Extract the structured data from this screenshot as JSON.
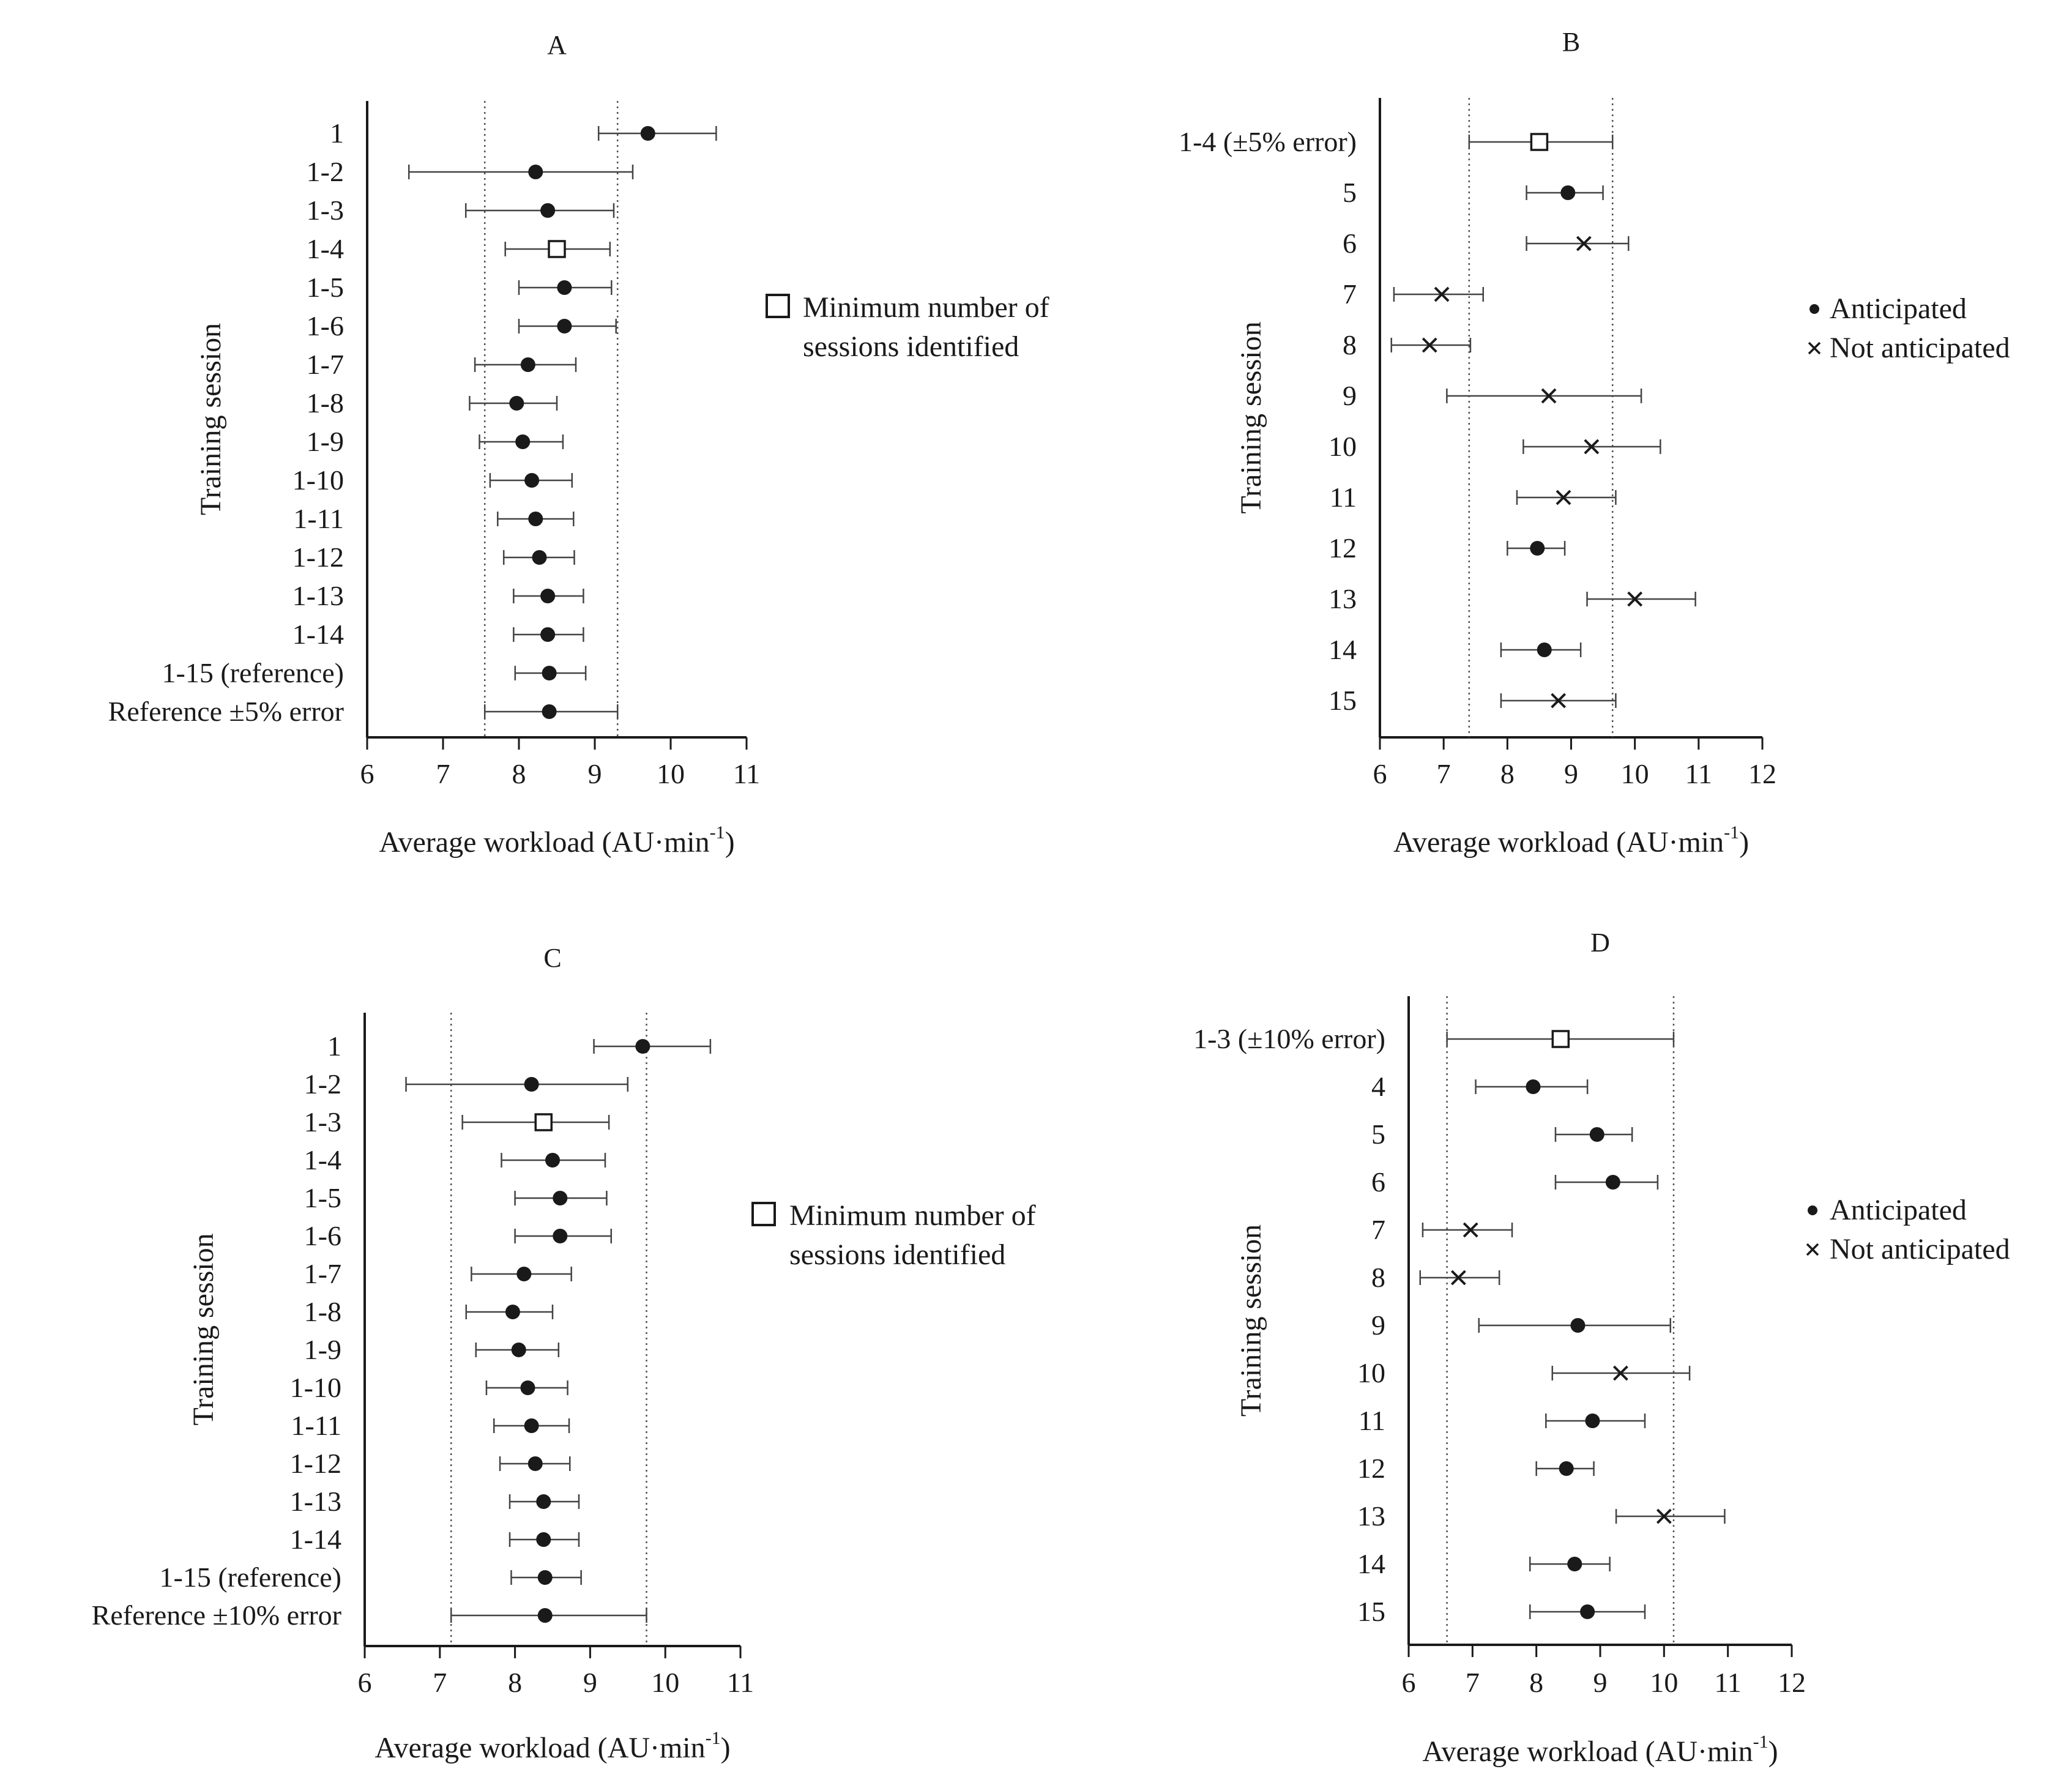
{
  "chart_data": [
    {
      "panel": "A",
      "type": "dot-errorbar",
      "title": "A",
      "xlabel": "Average workload (AU·min",
      "xlabel_sup": "-1",
      "ylabel": "Training session",
      "xlim": [
        6,
        11
      ],
      "xticks": [
        "6",
        "7",
        "8",
        "9",
        "10",
        "11"
      ],
      "reference_lines": [
        7.55,
        9.3
      ],
      "legend": {
        "placement": "right",
        "entries": [
          {
            "marker": "square",
            "lines": [
              "Minimum number of",
              "sessions identified"
            ]
          }
        ]
      },
      "rows": [
        {
          "label": "1",
          "value": 9.7,
          "low": 9.05,
          "high": 10.6,
          "marker": "dot"
        },
        {
          "label": "1-2",
          "value": 8.22,
          "low": 6.55,
          "high": 9.5,
          "marker": "dot"
        },
        {
          "label": "1-3",
          "value": 8.38,
          "low": 7.3,
          "high": 9.25,
          "marker": "dot"
        },
        {
          "label": "1-4",
          "value": 8.5,
          "low": 7.82,
          "high": 9.2,
          "marker": "square"
        },
        {
          "label": "1-5",
          "value": 8.6,
          "low": 8.0,
          "high": 9.22,
          "marker": "dot"
        },
        {
          "label": "1-6",
          "value": 8.6,
          "low": 8.0,
          "high": 9.28,
          "marker": "dot"
        },
        {
          "label": "1-7",
          "value": 8.12,
          "low": 7.42,
          "high": 8.75,
          "marker": "dot"
        },
        {
          "label": "1-8",
          "value": 7.97,
          "low": 7.35,
          "high": 8.5,
          "marker": "dot"
        },
        {
          "label": "1-9",
          "value": 8.05,
          "low": 7.48,
          "high": 8.58,
          "marker": "dot"
        },
        {
          "label": "1-10",
          "value": 8.17,
          "low": 7.62,
          "high": 8.7,
          "marker": "dot"
        },
        {
          "label": "1-11",
          "value": 8.22,
          "low": 7.72,
          "high": 8.72,
          "marker": "dot"
        },
        {
          "label": "1-12",
          "value": 8.27,
          "low": 7.8,
          "high": 8.73,
          "marker": "dot"
        },
        {
          "label": "1-13",
          "value": 8.38,
          "low": 7.93,
          "high": 8.85,
          "marker": "dot"
        },
        {
          "label": "1-14",
          "value": 8.38,
          "low": 7.93,
          "high": 8.85,
          "marker": "dot"
        },
        {
          "label": "1-15 (reference)",
          "value": 8.4,
          "low": 7.95,
          "high": 8.88,
          "marker": "dot"
        },
        {
          "label": "Reference ±5% error",
          "value": 8.4,
          "low": 7.55,
          "high": 9.3,
          "marker": "dot"
        }
      ]
    },
    {
      "panel": "B",
      "type": "dot-errorbar",
      "title": "B",
      "xlabel": "Average workload (AU·min",
      "xlabel_sup": "-1",
      "ylabel": "Training session",
      "xlim": [
        6,
        12
      ],
      "xticks": [
        "6",
        "7",
        "8",
        "9",
        "10",
        "11",
        "12"
      ],
      "reference_lines": [
        7.4,
        9.65
      ],
      "legend": {
        "placement": "right",
        "entries": [
          {
            "marker": "dot",
            "lines": [
              "Anticipated"
            ]
          },
          {
            "marker": "cross",
            "lines": [
              "Not anticipated"
            ]
          }
        ]
      },
      "rows": [
        {
          "label": "1-4 (±5% error)",
          "value": 8.5,
          "low": 7.4,
          "high": 9.65,
          "marker": "square"
        },
        {
          "label": "5",
          "value": 8.95,
          "low": 8.3,
          "high": 9.5,
          "marker": "dot"
        },
        {
          "label": "6",
          "value": 9.2,
          "low": 8.3,
          "high": 9.9,
          "marker": "cross"
        },
        {
          "label": "7",
          "value": 6.97,
          "low": 6.22,
          "high": 7.62,
          "marker": "cross"
        },
        {
          "label": "8",
          "value": 6.78,
          "low": 6.18,
          "high": 7.42,
          "marker": "cross"
        },
        {
          "label": "9",
          "value": 8.65,
          "low": 7.05,
          "high": 10.1,
          "marker": "cross"
        },
        {
          "label": "10",
          "value": 9.32,
          "low": 8.25,
          "high": 10.4,
          "marker": "cross"
        },
        {
          "label": "11",
          "value": 8.88,
          "low": 8.15,
          "high": 9.7,
          "marker": "cross"
        },
        {
          "label": "12",
          "value": 8.47,
          "low": 8.0,
          "high": 8.9,
          "marker": "dot"
        },
        {
          "label": "13",
          "value": 10.0,
          "low": 9.25,
          "high": 10.95,
          "marker": "cross"
        },
        {
          "label": "14",
          "value": 8.58,
          "low": 7.9,
          "high": 9.15,
          "marker": "dot"
        },
        {
          "label": "15",
          "value": 8.8,
          "low": 7.9,
          "high": 9.7,
          "marker": "cross"
        }
      ]
    },
    {
      "panel": "C",
      "type": "dot-errorbar",
      "title": "C",
      "xlabel": "Average workload (AU·min",
      "xlabel_sup": "-1",
      "ylabel": "Training session",
      "xlim": [
        6,
        11
      ],
      "xticks": [
        "6",
        "7",
        "8",
        "9",
        "10",
        "11"
      ],
      "reference_lines": [
        7.15,
        9.75
      ],
      "legend": {
        "placement": "right",
        "entries": [
          {
            "marker": "square",
            "lines": [
              "Minimum number of",
              "sessions identified"
            ]
          }
        ]
      },
      "rows": [
        {
          "label": "1",
          "value": 9.7,
          "low": 9.05,
          "high": 10.6,
          "marker": "dot"
        },
        {
          "label": "1-2",
          "value": 8.22,
          "low": 6.55,
          "high": 9.5,
          "marker": "dot"
        },
        {
          "label": "1-3",
          "value": 8.38,
          "low": 7.3,
          "high": 9.25,
          "marker": "square"
        },
        {
          "label": "1-4",
          "value": 8.5,
          "low": 7.82,
          "high": 9.2,
          "marker": "dot"
        },
        {
          "label": "1-5",
          "value": 8.6,
          "low": 8.0,
          "high": 9.22,
          "marker": "dot"
        },
        {
          "label": "1-6",
          "value": 8.6,
          "low": 8.0,
          "high": 9.28,
          "marker": "dot"
        },
        {
          "label": "1-7",
          "value": 8.12,
          "low": 7.42,
          "high": 8.75,
          "marker": "dot"
        },
        {
          "label": "1-8",
          "value": 7.97,
          "low": 7.35,
          "high": 8.5,
          "marker": "dot"
        },
        {
          "label": "1-9",
          "value": 8.05,
          "low": 7.48,
          "high": 8.58,
          "marker": "dot"
        },
        {
          "label": "1-10",
          "value": 8.17,
          "low": 7.62,
          "high": 8.7,
          "marker": "dot"
        },
        {
          "label": "1-11",
          "value": 8.22,
          "low": 7.72,
          "high": 8.72,
          "marker": "dot"
        },
        {
          "label": "1-12",
          "value": 8.27,
          "low": 7.8,
          "high": 8.73,
          "marker": "dot"
        },
        {
          "label": "1-13",
          "value": 8.38,
          "low": 7.93,
          "high": 8.85,
          "marker": "dot"
        },
        {
          "label": "1-14",
          "value": 8.38,
          "low": 7.93,
          "high": 8.85,
          "marker": "dot"
        },
        {
          "label": "1-15 (reference)",
          "value": 8.4,
          "low": 7.95,
          "high": 8.88,
          "marker": "dot"
        },
        {
          "label": "Reference ±10% error",
          "value": 8.4,
          "low": 7.15,
          "high": 9.75,
          "marker": "dot"
        }
      ]
    },
    {
      "panel": "D",
      "type": "dot-errorbar",
      "title": "D",
      "xlabel": "Average workload (AU·min",
      "xlabel_sup": "-1",
      "ylabel": "Training session",
      "xlim": [
        6,
        12
      ],
      "xticks": [
        "6",
        "7",
        "8",
        "9",
        "10",
        "11",
        "12"
      ],
      "reference_lines": [
        6.6,
        10.15
      ],
      "legend": {
        "placement": "right",
        "entries": [
          {
            "marker": "dot",
            "lines": [
              "Anticipated"
            ]
          },
          {
            "marker": "cross",
            "lines": [
              "Not anticipated"
            ]
          }
        ]
      },
      "rows": [
        {
          "label": "1-3 (±10% error)",
          "value": 8.38,
          "low": 6.6,
          "high": 10.15,
          "marker": "square"
        },
        {
          "label": "4",
          "value": 7.95,
          "low": 7.05,
          "high": 8.8,
          "marker": "dot"
        },
        {
          "label": "5",
          "value": 8.95,
          "low": 8.3,
          "high": 9.5,
          "marker": "dot"
        },
        {
          "label": "6",
          "value": 9.2,
          "low": 8.3,
          "high": 9.9,
          "marker": "dot"
        },
        {
          "label": "7",
          "value": 6.97,
          "low": 6.22,
          "high": 7.62,
          "marker": "cross"
        },
        {
          "label": "8",
          "value": 6.78,
          "low": 6.18,
          "high": 7.42,
          "marker": "cross"
        },
        {
          "label": "9",
          "value": 8.65,
          "low": 7.1,
          "high": 10.1,
          "marker": "dot"
        },
        {
          "label": "10",
          "value": 9.32,
          "low": 8.25,
          "high": 10.4,
          "marker": "cross"
        },
        {
          "label": "11",
          "value": 8.88,
          "low": 8.15,
          "high": 9.7,
          "marker": "dot"
        },
        {
          "label": "12",
          "value": 8.47,
          "low": 8.0,
          "high": 8.9,
          "marker": "dot"
        },
        {
          "label": "13",
          "value": 10.0,
          "low": 9.25,
          "high": 10.95,
          "marker": "cross"
        },
        {
          "label": "14",
          "value": 8.6,
          "low": 7.9,
          "high": 9.15,
          "marker": "dot"
        },
        {
          "label": "15",
          "value": 8.8,
          "low": 7.9,
          "high": 9.7,
          "marker": "dot"
        }
      ]
    }
  ]
}
